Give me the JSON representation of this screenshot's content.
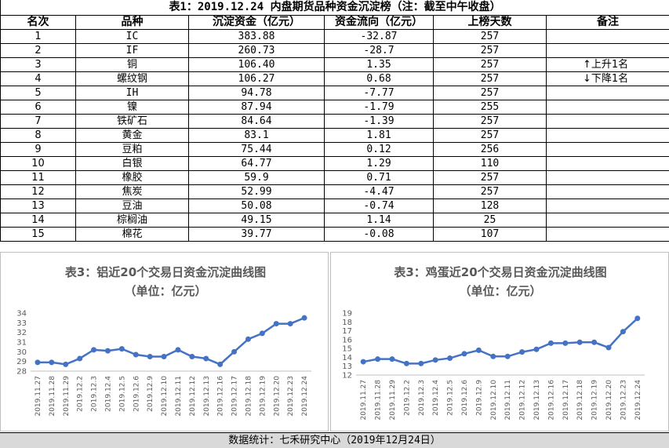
{
  "table": {
    "title": "表1：2019.12.24 内盘期货品种资金沉淀榜（注：截至中午收盘）",
    "headers": [
      "名次",
      "品种",
      "沉淀资金（亿元）",
      "资金流向（亿元）",
      "上榜天数",
      "备注"
    ],
    "rows": [
      {
        "rank": "1",
        "name": "IC",
        "funds": "383.88",
        "flow": "-32.87",
        "days": "257",
        "note": ""
      },
      {
        "rank": "2",
        "name": "IF",
        "funds": "260.73",
        "flow": "-28.7",
        "days": "257",
        "note": ""
      },
      {
        "rank": "3",
        "name": "铜",
        "funds": "106.40",
        "flow": "1.35",
        "days": "257",
        "note": "上升1名"
      },
      {
        "rank": "4",
        "name": "螺纹钢",
        "funds": "106.27",
        "flow": "0.68",
        "days": "257",
        "note": "下降1名"
      },
      {
        "rank": "5",
        "name": "IH",
        "funds": "94.78",
        "flow": "-7.77",
        "days": "257",
        "note": ""
      },
      {
        "rank": "6",
        "name": "镍",
        "funds": "87.94",
        "flow": "-1.79",
        "days": "255",
        "note": ""
      },
      {
        "rank": "7",
        "name": "铁矿石",
        "funds": "84.64",
        "flow": "-1.39",
        "days": "257",
        "note": ""
      },
      {
        "rank": "8",
        "name": "黄金",
        "funds": "83.1",
        "flow": "1.81",
        "days": "257",
        "note": ""
      },
      {
        "rank": "9",
        "name": "豆粕",
        "funds": "75.44",
        "flow": "0.12",
        "days": "256",
        "note": ""
      },
      {
        "rank": "10",
        "name": "白银",
        "funds": "64.77",
        "flow": "1.29",
        "days": "110",
        "note": ""
      },
      {
        "rank": "11",
        "name": "橡胶",
        "funds": "59.9",
        "flow": "0.71",
        "days": "257",
        "note": ""
      },
      {
        "rank": "12",
        "name": "焦炭",
        "funds": "52.99",
        "flow": "-4.47",
        "days": "257",
        "note": ""
      },
      {
        "rank": "13",
        "name": "豆油",
        "funds": "50.08",
        "flow": "-0.74",
        "days": "128",
        "note": ""
      },
      {
        "rank": "14",
        "name": "棕榈油",
        "funds": "49.15",
        "flow": "1.14",
        "days": "25",
        "note": ""
      },
      {
        "rank": "15",
        "name": "棉花",
        "funds": "39.77",
        "flow": "-0.08",
        "days": "107",
        "note": ""
      }
    ],
    "up_arrow": "↑",
    "down_arrow": "↓"
  },
  "footer": "数据统计：七禾研究中心（2019年12月24日）",
  "colors": {
    "line": "#4472c4",
    "axis": "#bfbfbf",
    "text": "#595959",
    "footer_bg": "#d9d9d9"
  },
  "chart_data": [
    {
      "type": "line",
      "title": "表3：铝近20个交易日资金沉淀曲线图",
      "subtitle": "（单位：亿元）",
      "xlabel": "",
      "ylabel": "",
      "categories": [
        "2019.11.27",
        "2019.11.28",
        "2019.11.29",
        "2019.12.2",
        "2019.12.3",
        "2019.12.4",
        "2019.12.5",
        "2019.12.6",
        "2019.12.9",
        "2019.12.10",
        "2019.12.11",
        "2019.12.12",
        "2019.12.13",
        "2019.12.16",
        "2019.12.17",
        "2019.12.18",
        "2019.12.19",
        "2019.12.20",
        "2019.12.23",
        "2019.12.24"
      ],
      "values": [
        28.9,
        28.9,
        28.7,
        29.3,
        30.2,
        30.1,
        30.3,
        29.7,
        29.5,
        29.5,
        30.2,
        29.5,
        29.3,
        28.7,
        30.0,
        31.3,
        31.9,
        32.9,
        32.9,
        33.5
      ],
      "ylim": [
        28,
        34
      ],
      "yticks": [
        "28",
        "29",
        "30",
        "31",
        "32",
        "33",
        "34"
      ],
      "grid": false,
      "legend": "none"
    },
    {
      "type": "line",
      "title": "表3：鸡蛋近20个交易日资金沉淀曲线图",
      "subtitle": "（单位：亿元）",
      "xlabel": "",
      "ylabel": "",
      "categories": [
        "2019.11.27",
        "2019.11.28",
        "2019.11.29",
        "2019.12.2",
        "2019.12.3",
        "2019.12.4",
        "2019.12.5",
        "2019.12.6",
        "2019.12.9",
        "2019.12.10",
        "2019.12.11",
        "2019.12.12",
        "2019.12.13",
        "2019.12.16",
        "2019.12.17",
        "2019.12.18",
        "2019.12.19",
        "2019.12.20",
        "2019.12.23",
        "2019.12.24"
      ],
      "values": [
        13.5,
        13.8,
        13.8,
        13.3,
        13.3,
        13.7,
        13.9,
        14.4,
        14.8,
        14.1,
        14.1,
        14.6,
        14.9,
        15.6,
        15.6,
        15.7,
        15.7,
        15.1,
        16.9,
        18.4
      ],
      "ylim": [
        12,
        19
      ],
      "yticks": [
        "12",
        "13",
        "14",
        "15",
        "16",
        "17",
        "18",
        "19"
      ],
      "grid": false,
      "legend": "none"
    }
  ]
}
